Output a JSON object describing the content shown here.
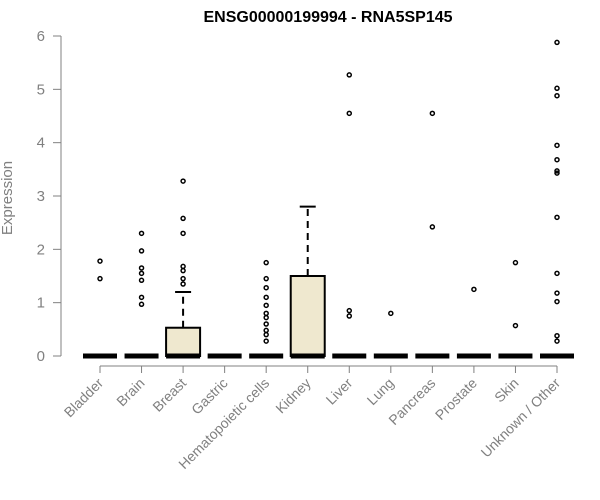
{
  "chart_data": {
    "type": "boxplot",
    "title": "ENSG00000199994 - RNA5SP145",
    "xlabel": "",
    "ylabel": "Expression",
    "ylim": [
      0,
      6
    ],
    "yticks": [
      "0",
      "1",
      "2",
      "3",
      "4",
      "5",
      "6"
    ],
    "grid": false,
    "legend": "none",
    "box_fill": "#EFE8CF",
    "categories": [
      "Bladder",
      "Brain",
      "Breast",
      "Gastric",
      "Hematopoietic cells",
      "Kidney",
      "Liver",
      "Lung",
      "Pancreas",
      "Prostate",
      "Skin",
      "Unknown / Other"
    ],
    "boxes": [
      {
        "q1": 0,
        "median": 0,
        "q3": 0,
        "whisker_low": 0,
        "whisker_high": 0,
        "outliers": [
          1.45,
          1.78
        ]
      },
      {
        "q1": 0,
        "median": 0,
        "q3": 0,
        "whisker_low": 0,
        "whisker_high": 0,
        "outliers": [
          0.97,
          1.1,
          1.42,
          1.55,
          1.65,
          1.97,
          2.3
        ]
      },
      {
        "q1": 0,
        "median": 0,
        "q3": 0.53,
        "whisker_low": 0,
        "whisker_high": 1.2,
        "outliers": [
          1.35,
          1.45,
          1.6,
          1.68,
          2.3,
          2.58,
          3.28
        ]
      },
      {
        "q1": 0,
        "median": 0,
        "q3": 0,
        "whisker_low": 0,
        "whisker_high": 0,
        "outliers": []
      },
      {
        "q1": 0,
        "median": 0,
        "q3": 0,
        "whisker_low": 0,
        "whisker_high": 0,
        "outliers": [
          0.28,
          0.4,
          0.48,
          0.6,
          0.72,
          0.8,
          0.95,
          1.1,
          1.28,
          1.45,
          1.75
        ]
      },
      {
        "q1": 0,
        "median": 0,
        "q3": 1.5,
        "whisker_low": 0,
        "whisker_high": 2.8,
        "outliers": []
      },
      {
        "q1": 0,
        "median": 0,
        "q3": 0,
        "whisker_low": 0,
        "whisker_high": 0,
        "outliers": [
          0.75,
          0.85,
          4.55,
          5.27
        ]
      },
      {
        "q1": 0,
        "median": 0,
        "q3": 0,
        "whisker_low": 0,
        "whisker_high": 0,
        "outliers": [
          0.8
        ]
      },
      {
        "q1": 0,
        "median": 0,
        "q3": 0,
        "whisker_low": 0,
        "whisker_high": 0,
        "outliers": [
          2.42,
          4.55
        ]
      },
      {
        "q1": 0,
        "median": 0,
        "q3": 0,
        "whisker_low": 0,
        "whisker_high": 0,
        "outliers": [
          1.25
        ]
      },
      {
        "q1": 0,
        "median": 0,
        "q3": 0,
        "whisker_low": 0,
        "whisker_high": 0,
        "outliers": [
          0.57,
          1.75
        ]
      },
      {
        "q1": 0,
        "median": 0,
        "q3": 0,
        "whisker_low": 0,
        "whisker_high": 0,
        "outliers": [
          0.28,
          0.38,
          1.02,
          1.18,
          1.55,
          2.6,
          3.43,
          3.47,
          3.68,
          3.95,
          4.88,
          5.02,
          5.88
        ]
      }
    ]
  }
}
